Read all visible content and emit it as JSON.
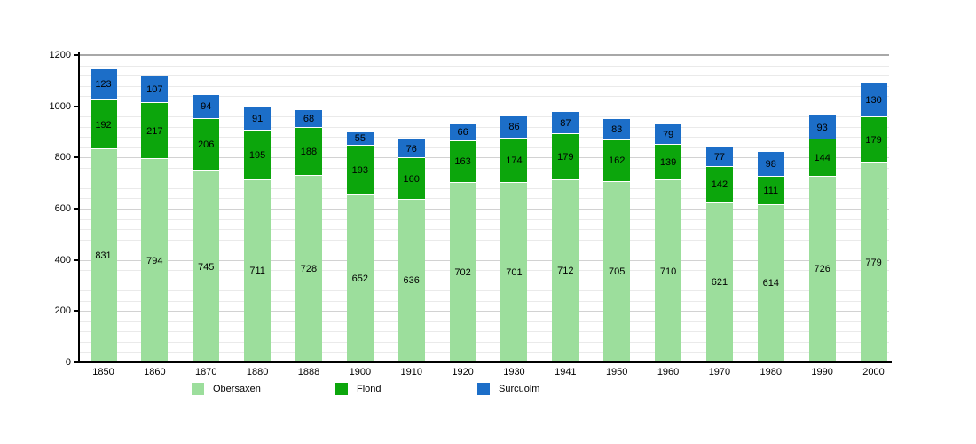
{
  "chart_data": {
    "type": "bar",
    "stacked": true,
    "title": "",
    "xlabel": "",
    "ylabel": "",
    "categories": [
      "1850",
      "1860",
      "1870",
      "1880",
      "1888",
      "1900",
      "1910",
      "1920",
      "1930",
      "1941",
      "1950",
      "1960",
      "1970",
      "1980",
      "1990",
      "2000"
    ],
    "series": [
      {
        "name": "Obersaxen",
        "color": "#9CDE9C",
        "values": [
          831,
          794,
          745,
          711,
          728,
          652,
          636,
          702,
          701,
          712,
          705,
          710,
          621,
          614,
          726,
          779
        ]
      },
      {
        "name": "Flond",
        "color": "#0CA60C",
        "values": [
          192,
          217,
          206,
          195,
          188,
          193,
          160,
          163,
          174,
          179,
          162,
          139,
          142,
          111,
          144,
          179
        ]
      },
      {
        "name": "Surcuolm",
        "color": "#1C6EC8",
        "values": [
          123,
          107,
          94,
          91,
          68,
          55,
          76,
          66,
          86,
          87,
          83,
          79,
          77,
          98,
          93,
          130
        ]
      }
    ],
    "ylim": [
      0,
      1200
    ],
    "yticks": [
      0,
      200,
      400,
      600,
      800,
      1000,
      1200
    ],
    "minor_grid_step": 40,
    "grid": true,
    "legend_position": "bottom",
    "axis_color": "#000000",
    "label_color": "#000000"
  }
}
